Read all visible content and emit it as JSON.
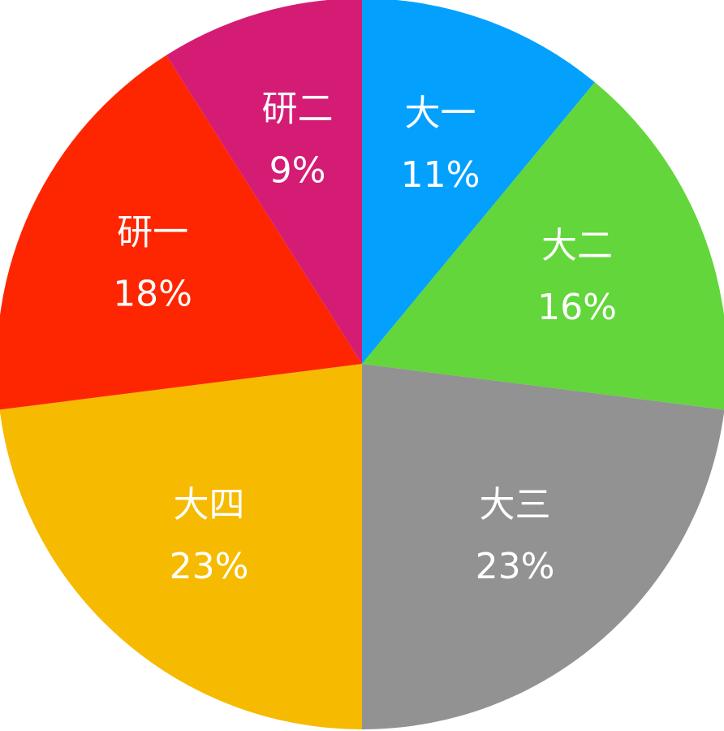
{
  "chart_data": {
    "type": "pie",
    "title": "",
    "start_angle": "12 o'clock",
    "direction": "clockwise",
    "legend": "none",
    "slices": [
      {
        "label": "大一",
        "value": 11,
        "percent_label": "11%",
        "color": "#04A0FE"
      },
      {
        "label": "大二",
        "value": 16,
        "percent_label": "16%",
        "color": "#62D63A"
      },
      {
        "label": "大三",
        "value": 23,
        "percent_label": "23%",
        "color": "#929292"
      },
      {
        "label": "大四",
        "value": 23,
        "percent_label": "23%",
        "color": "#F6BA00"
      },
      {
        "label": "研一",
        "value": 18,
        "percent_label": "18%",
        "color": "#FE2600"
      },
      {
        "label": "研二",
        "value": 9,
        "percent_label": "9%",
        "color": "#D41C75"
      }
    ]
  }
}
